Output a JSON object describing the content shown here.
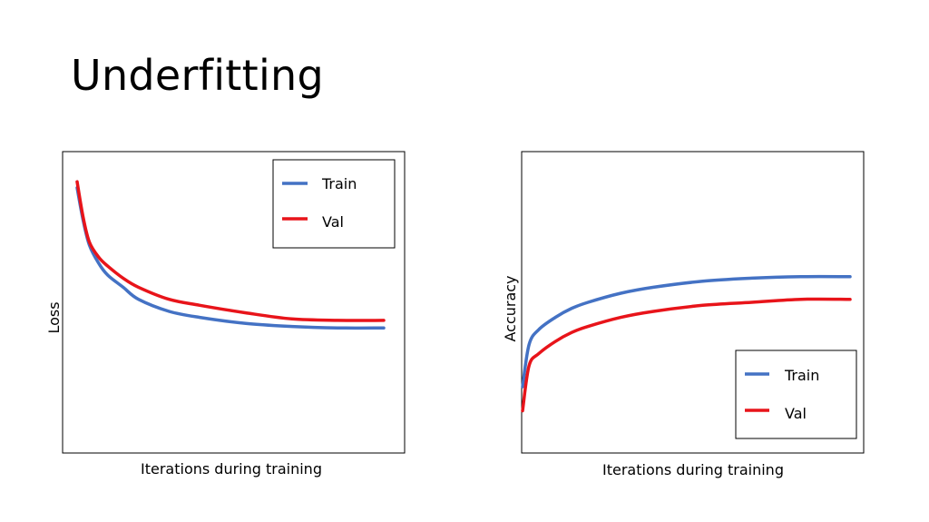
{
  "slide": {
    "title": "Underfitting"
  },
  "colors": {
    "train": "#4472C4",
    "val": "#E8141A"
  },
  "chart_data": [
    {
      "type": "line",
      "title": "",
      "xlabel": "Iterations during training",
      "ylabel": "Loss",
      "grid": false,
      "legend_position": "top-right",
      "series": [
        {
          "name": "Train",
          "color": "#4472C4",
          "x": [
            0,
            0.02,
            0.04,
            0.07,
            0.1,
            0.15,
            0.2,
            0.3,
            0.4,
            0.55,
            0.7,
            0.85,
            1.0
          ],
          "y": [
            0.88,
            0.77,
            0.69,
            0.63,
            0.59,
            0.55,
            0.51,
            0.47,
            0.45,
            0.43,
            0.42,
            0.415,
            0.415
          ]
        },
        {
          "name": "Val",
          "color": "#E8141A",
          "x": [
            0,
            0.02,
            0.04,
            0.07,
            0.1,
            0.15,
            0.2,
            0.3,
            0.4,
            0.55,
            0.7,
            0.85,
            1.0
          ],
          "y": [
            0.9,
            0.78,
            0.7,
            0.65,
            0.62,
            0.58,
            0.55,
            0.51,
            0.49,
            0.465,
            0.445,
            0.44,
            0.44
          ]
        }
      ]
    },
    {
      "type": "line",
      "title": "",
      "xlabel": "Iterations during training",
      "ylabel": "Accuracy",
      "grid": false,
      "legend_position": "bottom-right",
      "series": [
        {
          "name": "Train",
          "color": "#4472C4",
          "x": [
            0,
            0.02,
            0.05,
            0.1,
            0.15,
            0.2,
            0.3,
            0.4,
            0.55,
            0.7,
            0.85,
            1.0
          ],
          "y": [
            0.22,
            0.36,
            0.41,
            0.45,
            0.48,
            0.5,
            0.53,
            0.55,
            0.57,
            0.58,
            0.585,
            0.585
          ]
        },
        {
          "name": "Val",
          "color": "#E8141A",
          "x": [
            0,
            0.02,
            0.05,
            0.1,
            0.15,
            0.2,
            0.3,
            0.4,
            0.55,
            0.7,
            0.85,
            1.0
          ],
          "y": [
            0.14,
            0.29,
            0.33,
            0.37,
            0.4,
            0.42,
            0.45,
            0.47,
            0.49,
            0.5,
            0.51,
            0.51
          ]
        }
      ]
    }
  ]
}
